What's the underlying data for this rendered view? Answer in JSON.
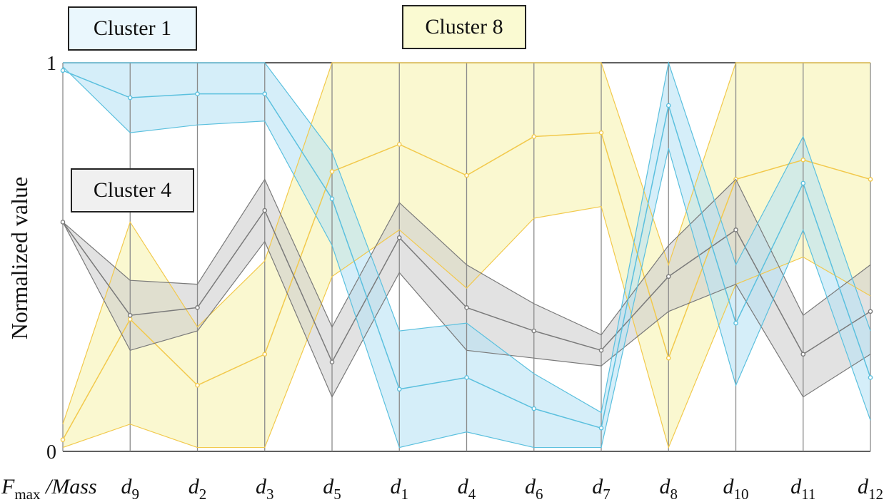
{
  "chart_data": {
    "type": "parallel-coordinates",
    "ylabel": "Normalized value",
    "ylim": [
      0,
      1
    ],
    "y_ticks": [
      "0",
      "1"
    ],
    "axes": [
      {
        "base": "F",
        "sub": "max",
        "suffix": " /Mass"
      },
      {
        "base": "d",
        "sub": "9"
      },
      {
        "base": "d",
        "sub": "2"
      },
      {
        "base": "d",
        "sub": "3"
      },
      {
        "base": "d",
        "sub": "5"
      },
      {
        "base": "d",
        "sub": "1"
      },
      {
        "base": "d",
        "sub": "4"
      },
      {
        "base": "d",
        "sub": "6"
      },
      {
        "base": "d",
        "sub": "7"
      },
      {
        "base": "d",
        "sub": "8"
      },
      {
        "base": "d",
        "sub": "10"
      },
      {
        "base": "d",
        "sub": "11"
      },
      {
        "base": "d",
        "sub": "12"
      }
    ],
    "series": [
      {
        "name": "Cluster 8",
        "color": "#f2c94c",
        "fill": "#f7f3b0",
        "center": [
          0.03,
          0.34,
          0.17,
          0.25,
          0.72,
          0.79,
          0.71,
          0.81,
          0.82,
          0.24,
          0.7,
          0.75,
          0.7
        ],
        "upper": [
          0.07,
          0.59,
          0.32,
          0.49,
          1.0,
          1.0,
          1.0,
          1.0,
          1.0,
          0.48,
          1.0,
          1.0,
          1.0
        ],
        "lower": [
          0.01,
          0.07,
          0.01,
          0.01,
          0.45,
          0.57,
          0.42,
          0.6,
          0.63,
          0.01,
          0.43,
          0.5,
          0.4
        ]
      },
      {
        "name": "Cluster 4",
        "color": "#7a7a7a",
        "fill": "#cfcfcf",
        "center": [
          0.59,
          0.35,
          0.37,
          0.62,
          0.23,
          0.55,
          0.37,
          0.31,
          0.26,
          0.45,
          0.57,
          0.25,
          0.36
        ],
        "upper": [
          0.59,
          0.44,
          0.43,
          0.7,
          0.32,
          0.64,
          0.48,
          0.38,
          0.3,
          0.53,
          0.7,
          0.35,
          0.48
        ],
        "lower": [
          0.59,
          0.26,
          0.31,
          0.54,
          0.14,
          0.46,
          0.26,
          0.24,
          0.22,
          0.36,
          0.43,
          0.14,
          0.25
        ]
      },
      {
        "name": "Cluster 1",
        "color": "#5bc0de",
        "fill": "#b9e3f5",
        "center": [
          0.98,
          0.91,
          0.92,
          0.92,
          0.65,
          0.16,
          0.19,
          0.11,
          0.06,
          0.89,
          0.33,
          0.69,
          0.19
        ],
        "upper": [
          1.0,
          1.0,
          1.0,
          1.0,
          0.77,
          0.31,
          0.33,
          0.2,
          0.1,
          1.0,
          0.48,
          0.81,
          0.31
        ],
        "lower": [
          0.99,
          0.82,
          0.84,
          0.85,
          0.53,
          0.01,
          0.05,
          0.01,
          0.01,
          0.78,
          0.17,
          0.57,
          0.08
        ]
      },
      {
        "name": "Cluster 1",
        "color": "#5bc0de",
        "fill": "#b9e3f5",
        "center": [
          0.98,
          0.91,
          0.92,
          0.92,
          0.65,
          0.16,
          0.19,
          0.11,
          0.06,
          0.89,
          0.33,
          0.69,
          0.19
        ],
        "upper": [
          1.0,
          1.0,
          1.0,
          1.0,
          0.77,
          0.31,
          0.33,
          0.2,
          0.1,
          1.0,
          0.48,
          0.81,
          0.31
        ],
        "lower": [
          0.99,
          0.82,
          0.84,
          0.85,
          0.53,
          0.01,
          0.05,
          0.01,
          0.01,
          0.78,
          0.17,
          0.57,
          0.08
        ]
      }
    ],
    "labels": [
      {
        "text": "Cluster 1",
        "bg": "#eaf7fd"
      },
      {
        "text": "Cluster 8",
        "bg": "#fafad2"
      },
      {
        "text": "Cluster 4",
        "bg": "#f0f0f0"
      }
    ]
  }
}
